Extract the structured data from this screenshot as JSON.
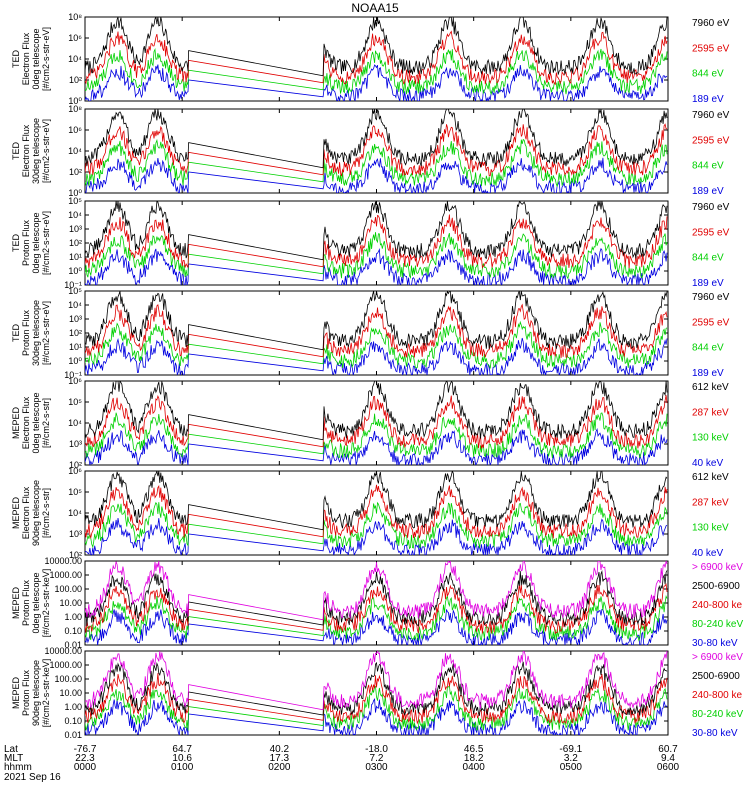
{
  "chart_data": {
    "type": "line",
    "title": "NOAA15",
    "date_label": "2021 Sep 16",
    "footer_row_labels": [
      "Lat",
      "MLT",
      "hhmm"
    ],
    "x_ticks": [
      {
        "lat": "-76.7",
        "mlt": "22.3",
        "hhmm": "0000"
      },
      {
        "lat": "64.7",
        "mlt": "10.6",
        "hhmm": "0100"
      },
      {
        "lat": "40.2",
        "mlt": "17.3",
        "hhmm": "0200"
      },
      {
        "lat": "-18.0",
        "mlt": "7.2",
        "hhmm": "0300"
      },
      {
        "lat": "46.5",
        "mlt": "18.2",
        "hhmm": "0400"
      },
      {
        "lat": "-69.1",
        "mlt": "3.2",
        "hhmm": "0500"
      },
      {
        "lat": "60.7",
        "mlt": "9.4",
        "hhmm": "0600"
      }
    ],
    "x_range_minutes": [
      0,
      360
    ],
    "panels": [
      {
        "ylabel": [
          "TED",
          "Electron Flux",
          "0deg telescope",
          "[#/cm2-s-str-eV]"
        ],
        "y_scale": "log",
        "ylim_exp": [
          0,
          8
        ],
        "ytick_labels": [
          "10⁰",
          "10²",
          "10⁴",
          "10⁶",
          "10⁸"
        ],
        "legend": [
          {
            "label": "7960 eV",
            "color": "#000000"
          },
          {
            "label": "2595 eV",
            "color": "#e00000"
          },
          {
            "label": "844 eV",
            "color": "#00d000"
          },
          {
            "label": "189 eV",
            "color": "#0000e0"
          }
        ]
      },
      {
        "ylabel": [
          "TED",
          "Electron Flux",
          "30deg telescope",
          "[#/cm2-s-str-eV]"
        ],
        "y_scale": "log",
        "ylim_exp": [
          0,
          8
        ],
        "ytick_labels": [
          "10⁰",
          "10²",
          "10⁴",
          "10⁶",
          "10⁸"
        ],
        "legend": [
          {
            "label": "7960 eV",
            "color": "#000000"
          },
          {
            "label": "2595 eV",
            "color": "#e00000"
          },
          {
            "label": "844 eV",
            "color": "#00d000"
          },
          {
            "label": "189 eV",
            "color": "#0000e0"
          }
        ]
      },
      {
        "ylabel": [
          "TED",
          "Proton Flux",
          "0deg telescope",
          "[#/cm2-s-str-eV]"
        ],
        "y_scale": "log",
        "ylim_exp": [
          -1,
          5
        ],
        "ytick_labels": [
          "10⁻¹",
          "10⁰",
          "10¹",
          "10²",
          "10³",
          "10⁴",
          "10⁵"
        ],
        "legend": [
          {
            "label": "7960 eV",
            "color": "#000000"
          },
          {
            "label": "2595 eV",
            "color": "#e00000"
          },
          {
            "label": "844 eV",
            "color": "#00d000"
          },
          {
            "label": "189 eV",
            "color": "#0000e0"
          }
        ]
      },
      {
        "ylabel": [
          "TED",
          "Proton Flux",
          "30deg telescope",
          "[#/cm2-s-str-eV]"
        ],
        "y_scale": "log",
        "ylim_exp": [
          -1,
          5
        ],
        "ytick_labels": [
          "10⁻¹",
          "10⁰",
          "10¹",
          "10²",
          "10³",
          "10⁴",
          "10⁵"
        ],
        "legend": [
          {
            "label": "7960 eV",
            "color": "#000000"
          },
          {
            "label": "2595 eV",
            "color": "#e00000"
          },
          {
            "label": "844 eV",
            "color": "#00d000"
          },
          {
            "label": "189 eV",
            "color": "#0000e0"
          }
        ]
      },
      {
        "ylabel": [
          "MEPED",
          "Electron Flux",
          "0deg telescope",
          "[#/cm2-s-str]"
        ],
        "y_scale": "log",
        "ylim_exp": [
          2,
          6
        ],
        "ytick_labels": [
          "10²",
          "10³",
          "10⁴",
          "10⁵",
          "10⁶"
        ],
        "legend": [
          {
            "label": "612 keV",
            "color": "#000000"
          },
          {
            "label": "287 keV",
            "color": "#e00000"
          },
          {
            "label": "130 keV",
            "color": "#00d000"
          },
          {
            "label": "40 keV",
            "color": "#0000e0"
          }
        ]
      },
      {
        "ylabel": [
          "MEPED",
          "Electron Flux",
          "90deg telescope",
          "[#/cm2-s-str]"
        ],
        "y_scale": "log",
        "ylim_exp": [
          2,
          6
        ],
        "ytick_labels": [
          "10²",
          "10³",
          "10⁴",
          "10⁵",
          "10⁶"
        ],
        "legend": [
          {
            "label": "612 keV",
            "color": "#000000"
          },
          {
            "label": "287 keV",
            "color": "#e00000"
          },
          {
            "label": "130 keV",
            "color": "#00d000"
          },
          {
            "label": "40 keV",
            "color": "#0000e0"
          }
        ]
      },
      {
        "ylabel": [
          "MEPED",
          "Proton Flux",
          "0deg telescope",
          "[#/cm2-s-str-keV]"
        ],
        "y_scale": "log",
        "ylim_exp": [
          -2,
          4
        ],
        "ytick_labels": [
          "0.01",
          "0.10",
          "1.00",
          "10.00",
          "100.00",
          "1000.00",
          "10000.00"
        ],
        "legend": [
          {
            "label": "> 6900 keV",
            "color": "#e000e0"
          },
          {
            "label": "2500-6900",
            "color": "#000000"
          },
          {
            "label": "240-800 ke",
            "color": "#e00000"
          },
          {
            "label": "80-240 keV",
            "color": "#00d000"
          },
          {
            "label": "30-80 keV",
            "color": "#0000e0"
          }
        ]
      },
      {
        "ylabel": [
          "MEPED",
          "Proton Flux",
          "90deg telescope",
          "[#/cm2-s-str-keV]"
        ],
        "y_scale": "log",
        "ylim_exp": [
          -2,
          4
        ],
        "ytick_labels": [
          "0.01",
          "0.10",
          "1.00",
          "10.00",
          "100.00",
          "1000.00",
          "10000.00"
        ],
        "legend": [
          {
            "label": "> 6900 keV",
            "color": "#e000e0"
          },
          {
            "label": "2500-6900",
            "color": "#000000"
          },
          {
            "label": "240-800 ke",
            "color": "#e00000"
          },
          {
            "label": "80-240 keV",
            "color": "#00d000"
          },
          {
            "label": "30-80 keV",
            "color": "#0000e0"
          }
        ]
      }
    ]
  }
}
